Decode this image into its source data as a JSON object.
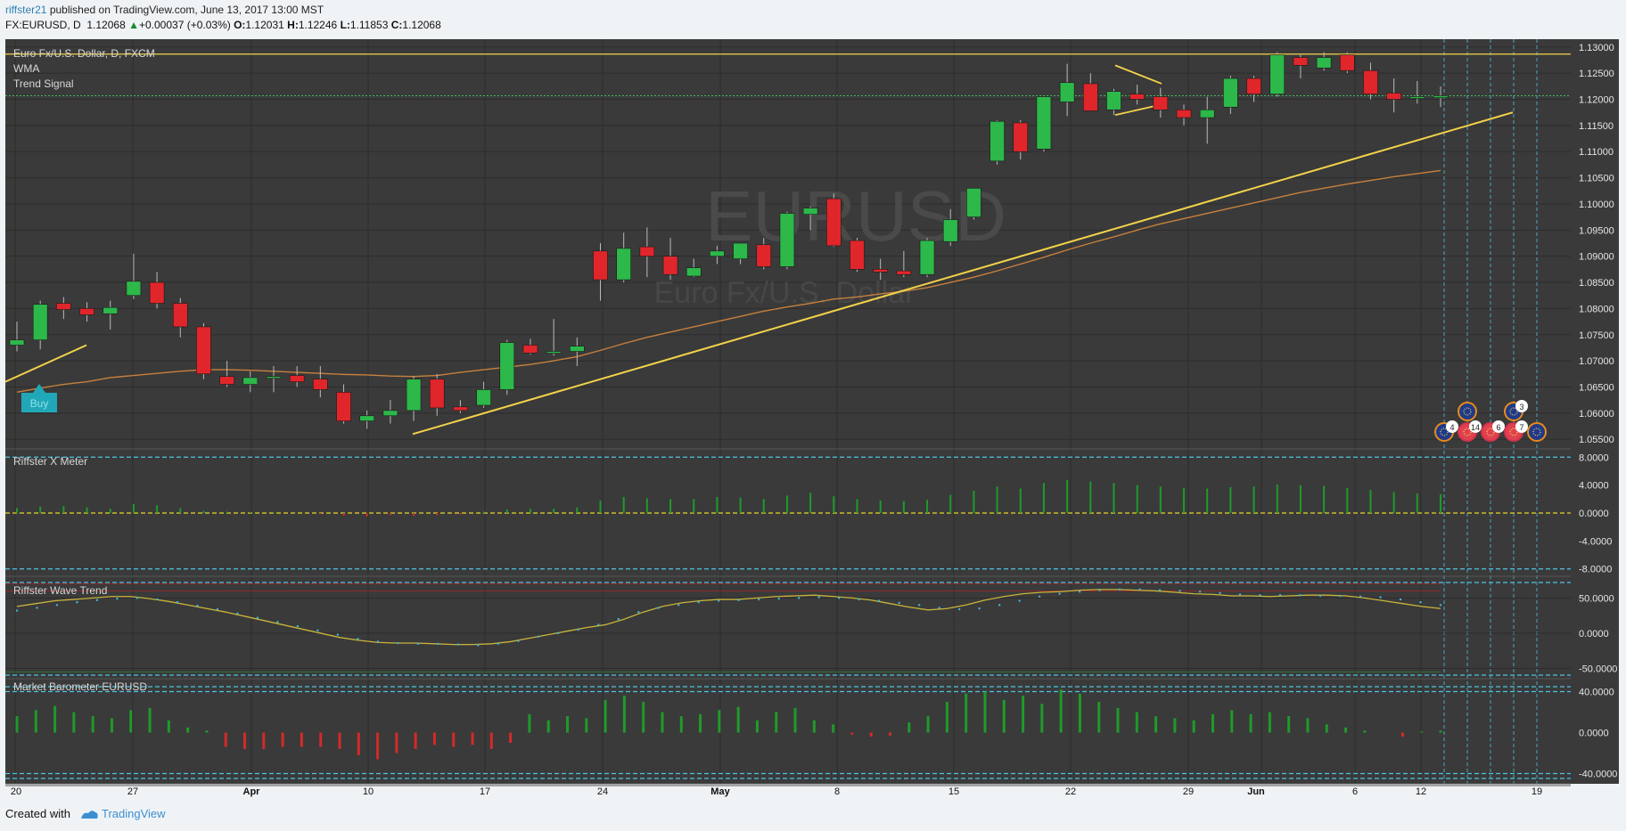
{
  "header": {
    "user": "riffster21",
    "published_text": "published on TradingView.com, June 13, 2017 13:00 MST",
    "symbol": "FX:EURUSD, D",
    "last": "1.12068",
    "change": "+0.00037 (+0.03%)",
    "o_label": "O:",
    "o": "1.12031",
    "h_label": "H:",
    "h": "1.12246",
    "l_label": "L:",
    "l": "1.11853",
    "c_label": "C:",
    "c": "1.12068"
  },
  "legend": {
    "title": "Euro Fx/U.S. Dollar, D, FXCM",
    "wma": "WMA",
    "trend_signal": "Trend Signal",
    "watermark": "EURUSD",
    "watermark_sub": "Euro Fx/U.S. Dollar"
  },
  "signals": {
    "buy": "Buy"
  },
  "badges": [
    "4",
    "14",
    "6",
    "7",
    "3"
  ],
  "footer": {
    "created": "Created with",
    "brand": "TradingView"
  },
  "colors": {
    "up": "#2db84a",
    "down": "#e0262b",
    "bg": "#3a3a3a",
    "trendline": "#f3d34a",
    "wma": "#c8803e",
    "dash": "#4fc3e3"
  },
  "chart_data": [
    {
      "type": "candlestick",
      "title": "Euro Fx/U.S. Dollar, D, FXCM",
      "price_labels": {
        "top_marker": "1.12865",
        "last_marker": "1.12068"
      },
      "y_ticks": [
        "1.13000",
        "1.12500",
        "1.12000",
        "1.11500",
        "1.11000",
        "1.10500",
        "1.10000",
        "1.09500",
        "1.09000",
        "1.08500",
        "1.08000",
        "1.07500",
        "1.07000",
        "1.06500",
        "1.06000",
        "1.05500"
      ],
      "ylim": [
        1.0535,
        1.1315
      ],
      "x_ticks": [
        "20",
        "27",
        "Apr",
        "10",
        "17",
        "24",
        "May",
        "8",
        "15",
        "22",
        "29",
        "Jun",
        "6",
        "12",
        "19"
      ],
      "candles": [
        [
          1.073,
          1.0775,
          1.0718,
          1.074
        ],
        [
          1.074,
          1.0815,
          1.0722,
          1.0808
        ],
        [
          1.081,
          1.0822,
          1.078,
          1.0798
        ],
        [
          1.08,
          1.0812,
          1.0775,
          1.0788
        ],
        [
          1.079,
          1.0815,
          1.076,
          1.0802
        ],
        [
          1.0825,
          1.0905,
          1.0818,
          1.0852
        ],
        [
          1.085,
          1.087,
          1.08,
          1.081
        ],
        [
          1.081,
          1.082,
          1.0745,
          1.0765
        ],
        [
          1.0765,
          1.0772,
          1.0665,
          1.0675
        ],
        [
          1.067,
          1.07,
          1.065,
          1.0655
        ],
        [
          1.0655,
          1.068,
          1.064,
          1.0668
        ],
        [
          1.0668,
          1.069,
          1.064,
          1.067
        ],
        [
          1.0672,
          1.069,
          1.065,
          1.066
        ],
        [
          1.0665,
          1.069,
          1.063,
          1.0645
        ],
        [
          1.064,
          1.0655,
          1.058,
          1.0585
        ],
        [
          1.0585,
          1.0605,
          1.057,
          1.0595
        ],
        [
          1.0595,
          1.0625,
          1.058,
          1.0605
        ],
        [
          1.0605,
          1.067,
          1.0585,
          1.0665
        ],
        [
          1.0665,
          1.0675,
          1.0595,
          1.061
        ],
        [
          1.0612,
          1.0625,
          1.06,
          1.0605
        ],
        [
          1.0615,
          1.066,
          1.061,
          1.0645
        ],
        [
          1.0645,
          1.074,
          1.0635,
          1.0735
        ],
        [
          1.073,
          1.0742,
          1.0712,
          1.0715
        ],
        [
          1.0715,
          1.078,
          1.071,
          1.0718
        ],
        [
          1.0718,
          1.0745,
          1.069,
          1.0728
        ],
        [
          1.091,
          1.0925,
          1.0815,
          1.0855
        ],
        [
          1.0855,
          1.0945,
          1.085,
          1.0915
        ],
        [
          1.0918,
          1.0955,
          1.086,
          1.09
        ],
        [
          1.09,
          1.0935,
          1.0855,
          1.0865
        ],
        [
          1.0862,
          1.0895,
          1.086,
          1.0878
        ],
        [
          1.09,
          1.092,
          1.0885,
          1.091
        ],
        [
          1.0895,
          1.0922,
          1.0885,
          1.0925
        ],
        [
          1.0922,
          1.0935,
          1.0875,
          1.088
        ],
        [
          1.088,
          1.0985,
          1.0875,
          1.0982
        ],
        [
          1.098,
          1.0995,
          1.095,
          1.0992
        ],
        [
          1.101,
          1.102,
          1.0918,
          1.092
        ],
        [
          1.093,
          1.0935,
          1.087,
          1.0875
        ],
        [
          1.0875,
          1.0895,
          1.0855,
          1.087
        ],
        [
          1.0872,
          1.091,
          1.086,
          1.0865
        ],
        [
          1.0865,
          1.0935,
          1.086,
          1.093
        ],
        [
          1.0928,
          1.099,
          1.092,
          1.097
        ],
        [
          1.0975,
          1.103,
          1.097,
          1.103
        ],
        [
          1.1082,
          1.116,
          1.1075,
          1.1158
        ],
        [
          1.1155,
          1.116,
          1.1085,
          1.11
        ],
        [
          1.1105,
          1.1205,
          1.11,
          1.1205
        ],
        [
          1.1195,
          1.1268,
          1.1168,
          1.1232
        ],
        [
          1.123,
          1.125,
          1.118,
          1.1178
        ],
        [
          1.118,
          1.122,
          1.117,
          1.1215
        ],
        [
          1.121,
          1.1228,
          1.119,
          1.12
        ],
        [
          1.1205,
          1.1222,
          1.1165,
          1.118
        ],
        [
          1.118,
          1.119,
          1.115,
          1.1165
        ],
        [
          1.1165,
          1.1205,
          1.1115,
          1.118
        ],
        [
          1.1185,
          1.1245,
          1.1172,
          1.124
        ],
        [
          1.124,
          1.1245,
          1.1195,
          1.121
        ],
        [
          1.121,
          1.129,
          1.1205,
          1.1285
        ],
        [
          1.128,
          1.1285,
          1.124,
          1.1265
        ],
        [
          1.126,
          1.129,
          1.1255,
          1.128
        ],
        [
          1.1285,
          1.129,
          1.125,
          1.1255
        ],
        [
          1.1255,
          1.127,
          1.12,
          1.121
        ],
        [
          1.1212,
          1.124,
          1.1175,
          1.12
        ],
        [
          1.1203,
          1.1235,
          1.1192,
          1.1205
        ],
        [
          1.12031,
          1.12246,
          1.11853,
          1.12068
        ]
      ],
      "wma": [
        1.064,
        1.0648,
        1.0655,
        1.066,
        1.0668,
        1.0672,
        1.0676,
        1.068,
        1.0683,
        1.0683,
        1.0682,
        1.068,
        1.0678,
        1.0676,
        1.0674,
        1.0673,
        1.0671,
        1.067,
        1.0672,
        1.0678,
        1.0683,
        1.0688,
        1.0693,
        1.07,
        1.0708,
        1.072,
        1.0733,
        1.0745,
        1.0755,
        1.0765,
        1.0775,
        1.0785,
        1.0795,
        1.0803,
        1.081,
        1.0818,
        1.0822,
        1.0828,
        1.0833,
        1.084,
        1.085,
        1.086,
        1.0872,
        1.0885,
        1.0898,
        1.0912,
        1.0925,
        1.0937,
        1.095,
        1.0962,
        1.0972,
        1.0982,
        1.0992,
        1.1002,
        1.1012,
        1.1022,
        1.103,
        1.1038,
        1.1045,
        1.1052,
        1.1058,
        1.1064
      ]
    },
    {
      "type": "bar",
      "title": "Riffster X Meter",
      "y_ticks": [
        "8.0000",
        "4.0000",
        "0.0000",
        "-4.0000",
        "-8.0000"
      ],
      "ylim": [
        -8.8,
        8.8
      ],
      "values": [
        0.7,
        0.9,
        1.0,
        0.8,
        0.6,
        1.3,
        1.1,
        0.7,
        0.3,
        0.2,
        0.1,
        0.1,
        0.0,
        -0.1,
        -0.4,
        -0.5,
        -0.3,
        -0.4,
        -0.3,
        -0.2,
        0.2,
        0.5,
        0.6,
        0.6,
        0.8,
        1.8,
        2.3,
        2.1,
        2.0,
        2.0,
        2.3,
        2.2,
        2.0,
        2.5,
        2.9,
        2.4,
        2.0,
        1.8,
        1.7,
        1.9,
        2.6,
        3.2,
        3.8,
        3.5,
        4.3,
        4.7,
        4.5,
        4.3,
        4.0,
        3.8,
        3.6,
        3.5,
        3.7,
        3.8,
        4.1,
        4.0,
        3.9,
        3.6,
        3.3,
        3.0,
        2.8,
        2.7
      ]
    },
    {
      "type": "line",
      "title": "Riffster Wave Trend",
      "y_ticks": [
        "50.0000",
        "0.0000",
        "-50.0000"
      ],
      "ylim": [
        -62,
        77
      ],
      "values": [
        38,
        42,
        46,
        48,
        50,
        52,
        52,
        49,
        45,
        40,
        35,
        30,
        24,
        18,
        12,
        6,
        0,
        -6,
        -10,
        -13,
        -14,
        -14,
        -15,
        -16,
        -16,
        -15,
        -12,
        -7,
        -2,
        3,
        8,
        12,
        20,
        30,
        38,
        43,
        46,
        48,
        48,
        50,
        52,
        53,
        54,
        52,
        50,
        47,
        42,
        37,
        33,
        35,
        40,
        47,
        52,
        56,
        58,
        59,
        61,
        62,
        62,
        61,
        60,
        58,
        56,
        55,
        53,
        53,
        52,
        53,
        54,
        54,
        53,
        50,
        46,
        42,
        38,
        35
      ],
      "signal": [
        32,
        36,
        40,
        44,
        47,
        49,
        50,
        48,
        44,
        39,
        34,
        28,
        22,
        16,
        10,
        4,
        -2,
        -8,
        -12,
        -14,
        -15,
        -15,
        -16,
        -17,
        -15,
        -11,
        -5,
        0,
        5,
        12,
        20,
        30,
        36,
        40,
        44,
        46,
        47,
        48,
        49,
        50,
        51,
        50,
        48,
        46,
        43,
        40,
        36,
        34,
        35,
        40,
        46,
        52,
        56,
        59,
        61,
        62,
        62,
        61,
        60,
        59,
        57,
        55,
        54,
        54,
        54,
        53,
        53,
        52,
        51,
        48,
        44,
        40
      ]
    },
    {
      "type": "bar",
      "title": "Market Barometer EURUSD",
      "y_ticks": [
        "40.0000",
        "0.0000",
        "-40.0000"
      ],
      "ylim": [
        -50,
        50
      ],
      "values": [
        16,
        22,
        26,
        20,
        16,
        14,
        22,
        24,
        12,
        5,
        2,
        -14,
        -16,
        -16,
        -14,
        -14,
        -14,
        -16,
        -22,
        -26,
        -20,
        -16,
        -12,
        -14,
        -12,
        -16,
        -10,
        18,
        12,
        16,
        14,
        32,
        36,
        30,
        20,
        16,
        18,
        22,
        25,
        12,
        20,
        24,
        12,
        8,
        -2,
        -4,
        -3,
        10,
        16,
        30,
        38,
        40,
        32,
        36,
        28,
        42,
        38,
        30,
        24,
        20,
        16,
        14,
        12,
        18,
        22,
        18,
        20,
        16,
        14,
        8,
        5,
        2,
        0,
        -4,
        1,
        2
      ]
    }
  ]
}
